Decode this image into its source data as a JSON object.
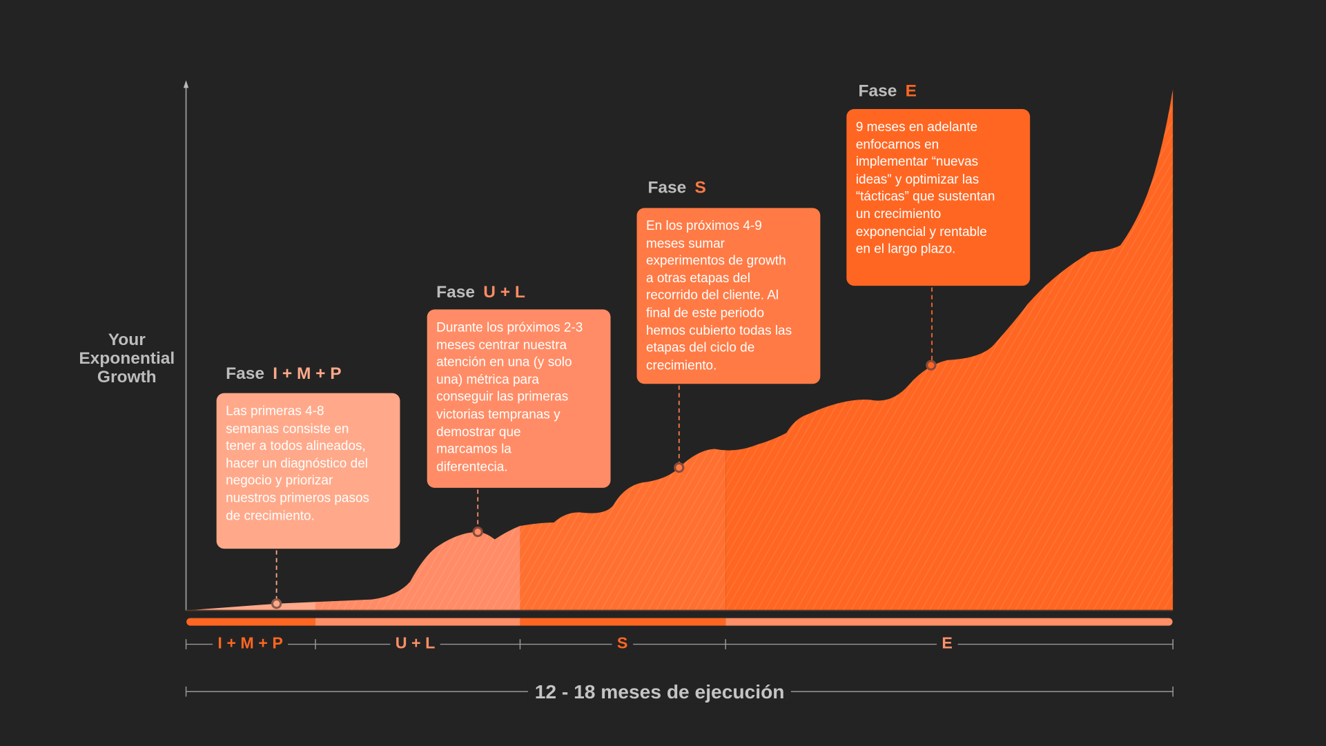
{
  "y_axis_label": [
    "Your",
    "Exponential",
    "Growth"
  ],
  "colors": {
    "background": "#232323",
    "phase1": "#ffa98a",
    "phase2": "#ff8c66",
    "phase3": "#ff7a45",
    "phase4": "#ff6622",
    "accent": "#ff6622",
    "muted": "#bdbdbd"
  },
  "phases": [
    {
      "prefix": "Fase",
      "name": "I + M + P",
      "label": "I + M + P",
      "lines": [
        "Las primeras 4-8",
        "semanas consiste en",
        "tener a todos alineados,",
        "hacer un diagnóstico del",
        "negocio y priorizar",
        "nuestros primeros pasos",
        "de crecimiento."
      ]
    },
    {
      "prefix": "Fase",
      "name": "U + L",
      "label": "U + L",
      "lines": [
        "Durante los próximos 2-3",
        "meses centrar nuestra",
        "atención en una (y solo",
        "una) métrica para",
        "conseguir las primeras",
        "victorias tempranas y",
        "demostrar que",
        "marcamos la",
        "diferentecia."
      ]
    },
    {
      "prefix": "Fase",
      "name": "S",
      "label": "S",
      "lines": [
        "En los próximos 4-9",
        "meses sumar",
        "experimentos de growth",
        "a otras etapas del",
        "recorrido del cliente. Al",
        "final de este periodo",
        "hemos cubierto todas las",
        "etapas del ciclo de",
        "crecimiento."
      ]
    },
    {
      "prefix": "Fase",
      "name": "E",
      "label": "E",
      "lines": [
        "9 meses en adelante",
        "enfocarnos en",
        "implementar “nuevas",
        "ideas” y optimizar las",
        "“tácticas” que sustentan",
        "un crecimiento",
        "exponencial y rentable",
        "en el largo plazo."
      ]
    }
  ],
  "timeline_total": "12 - 18 meses de ejecución"
}
